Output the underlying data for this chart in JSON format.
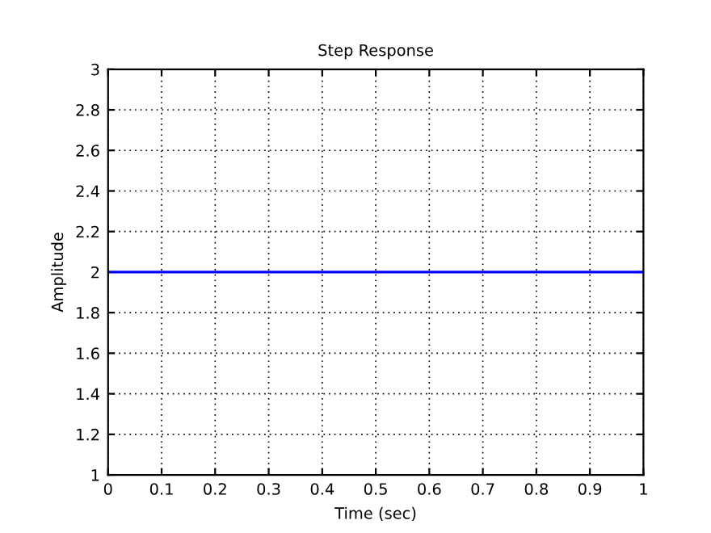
{
  "chart_data": {
    "type": "line",
    "title": "Step Response",
    "xlabel": "Time (sec)",
    "ylabel": "Amplitude",
    "x": [
      0,
      1
    ],
    "series": [
      {
        "color": "#0000ff",
        "values": [
          2,
          2
        ]
      }
    ],
    "xlim": [
      0,
      1
    ],
    "xticks": [
      0,
      0.1,
      0.2,
      0.3,
      0.4,
      0.5,
      0.6,
      0.7,
      0.8,
      0.9,
      1
    ],
    "ylim": [
      1,
      3
    ],
    "yticks": [
      1,
      1.2,
      1.4,
      1.6,
      1.8,
      2,
      2.2,
      2.4,
      2.6,
      2.8,
      3
    ],
    "grid": true,
    "line_style": "solid"
  }
}
